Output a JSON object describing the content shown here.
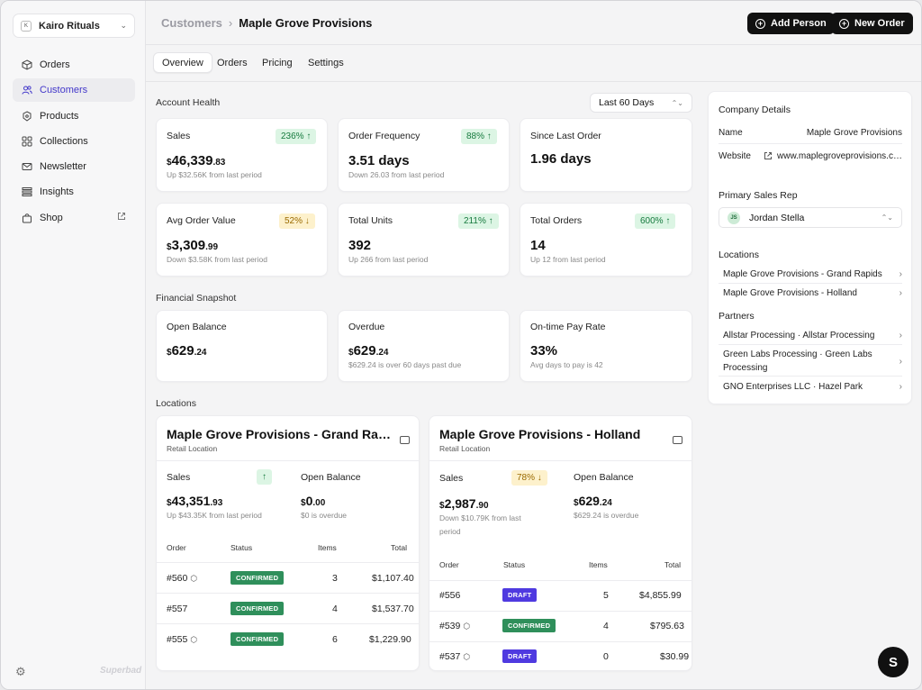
{
  "sidebar": {
    "store_name": "Kairo Rituals",
    "items": [
      {
        "label": "Orders",
        "icon": "box-icon"
      },
      {
        "label": "Customers",
        "icon": "users-icon"
      },
      {
        "label": "Products",
        "icon": "tag-icon"
      },
      {
        "label": "Collections",
        "icon": "grid-icon"
      },
      {
        "label": "Newsletter",
        "icon": "mail-icon"
      },
      {
        "label": "Insights",
        "icon": "list-icon"
      },
      {
        "label": "Shop",
        "icon": "bag-icon"
      }
    ],
    "footer_brand": "Superbad"
  },
  "header": {
    "breadcrumb_parent": "Customers",
    "breadcrumb_current": "Maple Grove Provisions",
    "add_person": "Add Person",
    "new_order": "New Order"
  },
  "tabs": [
    "Overview",
    "Orders",
    "Pricing",
    "Settings"
  ],
  "account_health": {
    "title": "Account Health",
    "range": "Last 60 Days",
    "metrics": [
      {
        "label": "Sales",
        "value_main": "46,339",
        "value_cents": ".83",
        "currency": "$",
        "sub": "Up $32.56K from last period",
        "badge": "236% ↑"
      },
      {
        "label": "Order Frequency",
        "value_main": "3.51 days",
        "sub": "Down 26.03 from last period",
        "badge": "88% ↑"
      },
      {
        "label": "Since Last Order",
        "value_main": "1.96 days"
      },
      {
        "label": "Avg Order Value",
        "value_main": "3,309",
        "value_cents": ".99",
        "currency": "$",
        "sub": "Down $3.58K from last period",
        "badge": "52% ↓"
      },
      {
        "label": "Total Units",
        "value_main": "392",
        "sub": "Up 266 from last period",
        "badge": "211% ↑"
      },
      {
        "label": "Total Orders",
        "value_main": "14",
        "sub": "Up 12 from last period",
        "badge": "600% ↑"
      }
    ]
  },
  "financial": {
    "title": "Financial Snapshot",
    "metrics": [
      {
        "label": "Open Balance",
        "currency": "$",
        "value_main": "629",
        "value_cents": ".24"
      },
      {
        "label": "Overdue",
        "currency": "$",
        "value_main": "629",
        "value_cents": ".24",
        "sub": "$629.24 is over 60 days past due"
      },
      {
        "label": "On-time Pay Rate",
        "value_main": "33%",
        "sub": "Avg days to pay is 42"
      }
    ]
  },
  "locations_title": "Locations",
  "locations": [
    {
      "title": "Maple Grove Provisions - Grand Rapids",
      "type": "Retail Location",
      "sales_label": "Sales",
      "sales_badge": "↑",
      "sales_currency": "$",
      "sales_main": "43,351",
      "sales_cents": ".93",
      "sales_sub": "Up $43.35K from last period",
      "balance_label": "Open Balance",
      "balance_currency": "$",
      "balance_main": "0",
      "balance_cents": ".00",
      "balance_sub": "$0 is overdue",
      "headers": [
        "Order",
        "Status",
        "Items",
        "Total"
      ],
      "rows": [
        {
          "order": "#560",
          "status": "CONFIRMED",
          "items": "3",
          "total": "$1,107.40"
        },
        {
          "order": "#557",
          "status": "CONFIRMED",
          "items": "4",
          "total": "$1,537.70"
        },
        {
          "order": "#555",
          "status": "CONFIRMED",
          "items": "6",
          "total": "$1,229.90"
        }
      ]
    },
    {
      "title": "Maple Grove Provisions - Holland",
      "type": "Retail Location",
      "sales_label": "Sales",
      "sales_badge": "78% ↓",
      "sales_currency": "$",
      "sales_main": "2,987",
      "sales_cents": ".90",
      "sales_sub": "Down $10.79K from last period",
      "balance_label": "Open Balance",
      "balance_currency": "$",
      "balance_main": "629",
      "balance_cents": ".24",
      "balance_sub": "$629.24 is overdue",
      "headers": [
        "Order",
        "Status",
        "Items",
        "Total"
      ],
      "rows": [
        {
          "order": "#556",
          "status": "DRAFT",
          "items": "5",
          "total": "$4,855.99"
        },
        {
          "order": "#539",
          "status": "CONFIRMED",
          "items": "4",
          "total": "$795.63"
        },
        {
          "order": "#537",
          "status": "DRAFT",
          "items": "0",
          "total": "$30.99"
        }
      ]
    }
  ],
  "company": {
    "title": "Company Details",
    "name_label": "Name",
    "name_value": "Maple Grove Provisions",
    "website_label": "Website",
    "website_value": "www.maplegroveprovisions.com",
    "rep_title": "Primary Sales Rep",
    "rep_initials": "JS",
    "rep_name": "Jordan Stella",
    "locations_title": "Locations",
    "locations": [
      "Maple Grove Provisions - Grand Rapids",
      "Maple Grove Provisions - Holland"
    ],
    "partners_title": "Partners",
    "partners": [
      "Allstar Processing · Allstar Processing",
      "Green Labs Processing · Green Labs Processing",
      "GNO Enterprises LLC · Hazel Park"
    ]
  },
  "fab_label": "S",
  "colors": {
    "accent": "#4338ca",
    "confirmed": "#2f8f5b",
    "draft": "#4f3ae0",
    "up_badge": "#dcf5e4",
    "down_badge": "#fdf1cc"
  }
}
